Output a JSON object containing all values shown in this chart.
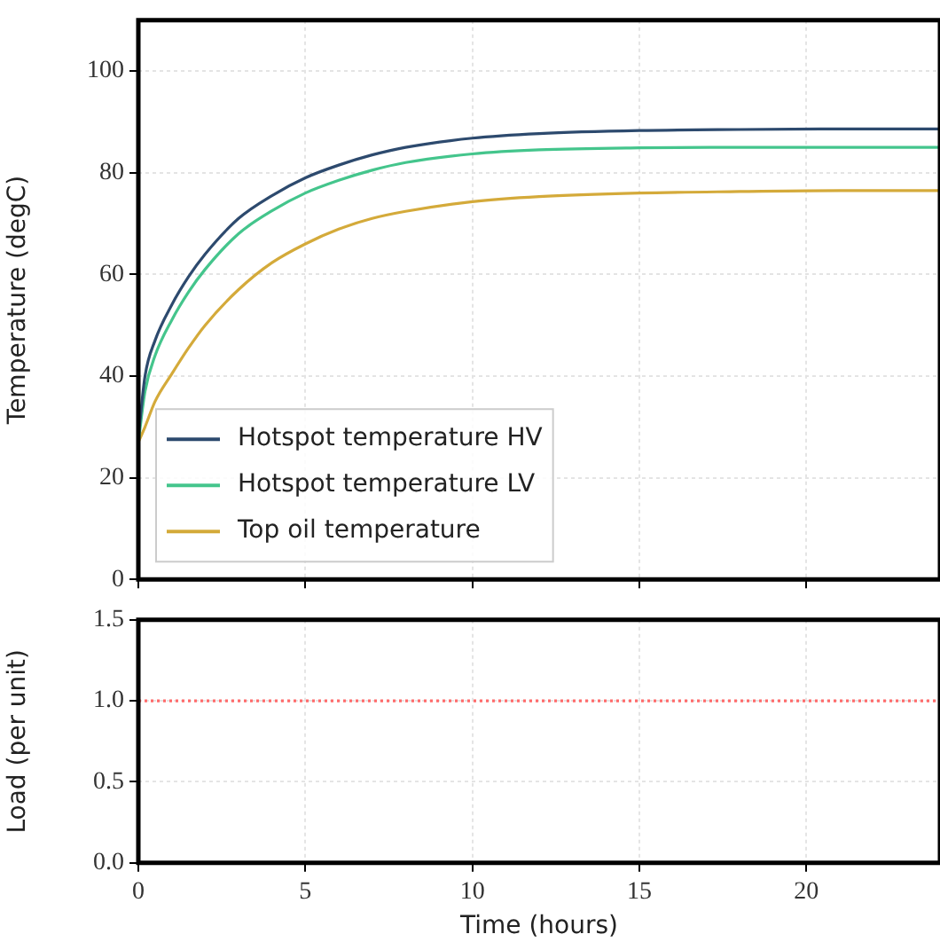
{
  "chart_data": [
    {
      "type": "line",
      "ylabel": "Temperature (degC)",
      "x": [
        0,
        0.2,
        0.5,
        1,
        1.5,
        2,
        3,
        4,
        5,
        6,
        7,
        8,
        10,
        12,
        15,
        18,
        21,
        24
      ],
      "xlim": [
        0,
        24
      ],
      "xticks": [
        0,
        5,
        10,
        15,
        20
      ],
      "ylim": [
        0,
        110
      ],
      "yticks": [
        0,
        20,
        40,
        60,
        80,
        100
      ],
      "grid": true,
      "legend": "bottom left",
      "tick_labels": "y",
      "marker": "none",
      "line_style": "solid",
      "series": [
        {
          "name": "Hotspot temperature HV",
          "color": "#2d4a6e",
          "values": [
            28,
            40,
            47,
            54,
            59.5,
            64,
            71,
            75.5,
            79,
            81.5,
            83.5,
            85,
            86.8,
            87.7,
            88.3,
            88.5,
            88.6,
            88.6
          ]
        },
        {
          "name": "Hotspot temperature LV",
          "color": "#44c58c",
          "values": [
            27,
            37,
            44,
            51,
            56.5,
            61,
            68,
            72.5,
            76,
            78.5,
            80.5,
            82,
            83.7,
            84.5,
            84.9,
            85,
            85,
            85
          ]
        },
        {
          "name": "Top oil temperature",
          "color": "#d4aa3a",
          "values": [
            27,
            30,
            35,
            40.4,
            45.5,
            50,
            57,
            62.3,
            66,
            68.9,
            71,
            72.4,
            74.3,
            75.3,
            76,
            76.3,
            76.5,
            76.5
          ]
        }
      ]
    },
    {
      "type": "line",
      "xlabel": "Time (hours)",
      "ylabel": "Load (per unit)",
      "x": [
        0,
        24
      ],
      "xlim": [
        0,
        24
      ],
      "xticks": [
        0,
        5,
        10,
        15,
        20
      ],
      "ylim": [
        0,
        1.5
      ],
      "yticks": [
        {
          "value": 0,
          "label": "0.0"
        },
        {
          "value": 0.5,
          "label": "0.5"
        },
        {
          "value": 1,
          "label": "1.0"
        },
        {
          "value": 1.5,
          "label": "1.5"
        }
      ],
      "grid": true,
      "marker": "none",
      "series": [
        {
          "color": "#ff6b6b",
          "line_style": "dotted",
          "values": [
            1,
            1
          ]
        }
      ]
    }
  ]
}
